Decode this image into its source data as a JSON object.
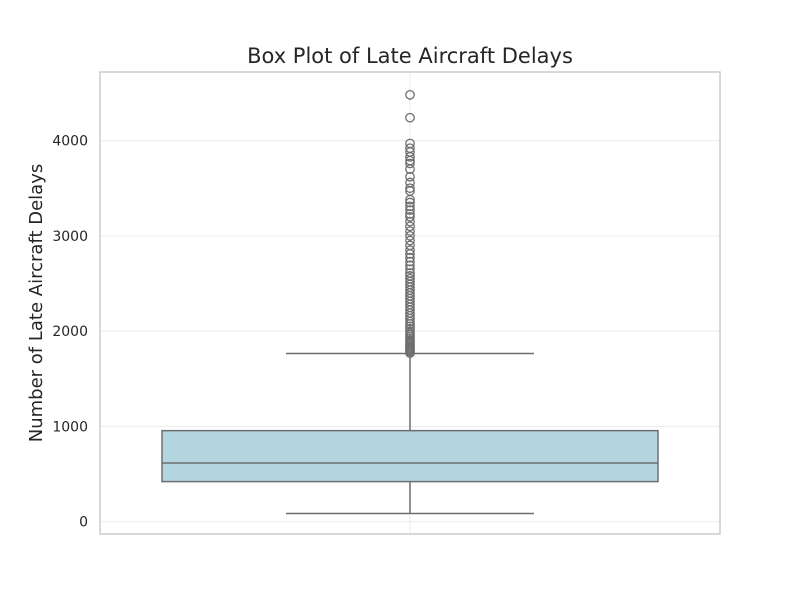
{
  "chart_data": {
    "type": "box",
    "title": "Box Plot of Late Aircraft Delays",
    "xlabel": "",
    "ylabel": "Number of Late Aircraft Delays",
    "ylim": [
      -130,
      4720
    ],
    "yticks": [
      0,
      1000,
      2000,
      3000,
      4000
    ],
    "grid": true,
    "colors": {
      "box_fill": "#b2d5e0",
      "line": "#6e6e6e",
      "grid": "#ebebeb",
      "frame": "#cccccc"
    },
    "box": {
      "whisker_low": 85,
      "q1": 420,
      "median": 615,
      "q3": 955,
      "whisker_high": 1765
    },
    "outliers": [
      1770,
      1785,
      1800,
      1810,
      1825,
      1840,
      1855,
      1870,
      1885,
      1900,
      1920,
      1940,
      1960,
      1980,
      2000,
      2025,
      2050,
      2075,
      2100,
      2130,
      2160,
      2190,
      2220,
      2250,
      2280,
      2310,
      2340,
      2370,
      2400,
      2430,
      2460,
      2490,
      2520,
      2550,
      2580,
      2610,
      2650,
      2690,
      2730,
      2770,
      2810,
      2850,
      2900,
      2950,
      3000,
      3050,
      3100,
      3150,
      3200,
      3230,
      3270,
      3310,
      3350,
      3380,
      3470,
      3500,
      3560,
      3620,
      3700,
      3760,
      3790,
      3830,
      3880,
      3920,
      3970,
      4240,
      4480
    ]
  }
}
